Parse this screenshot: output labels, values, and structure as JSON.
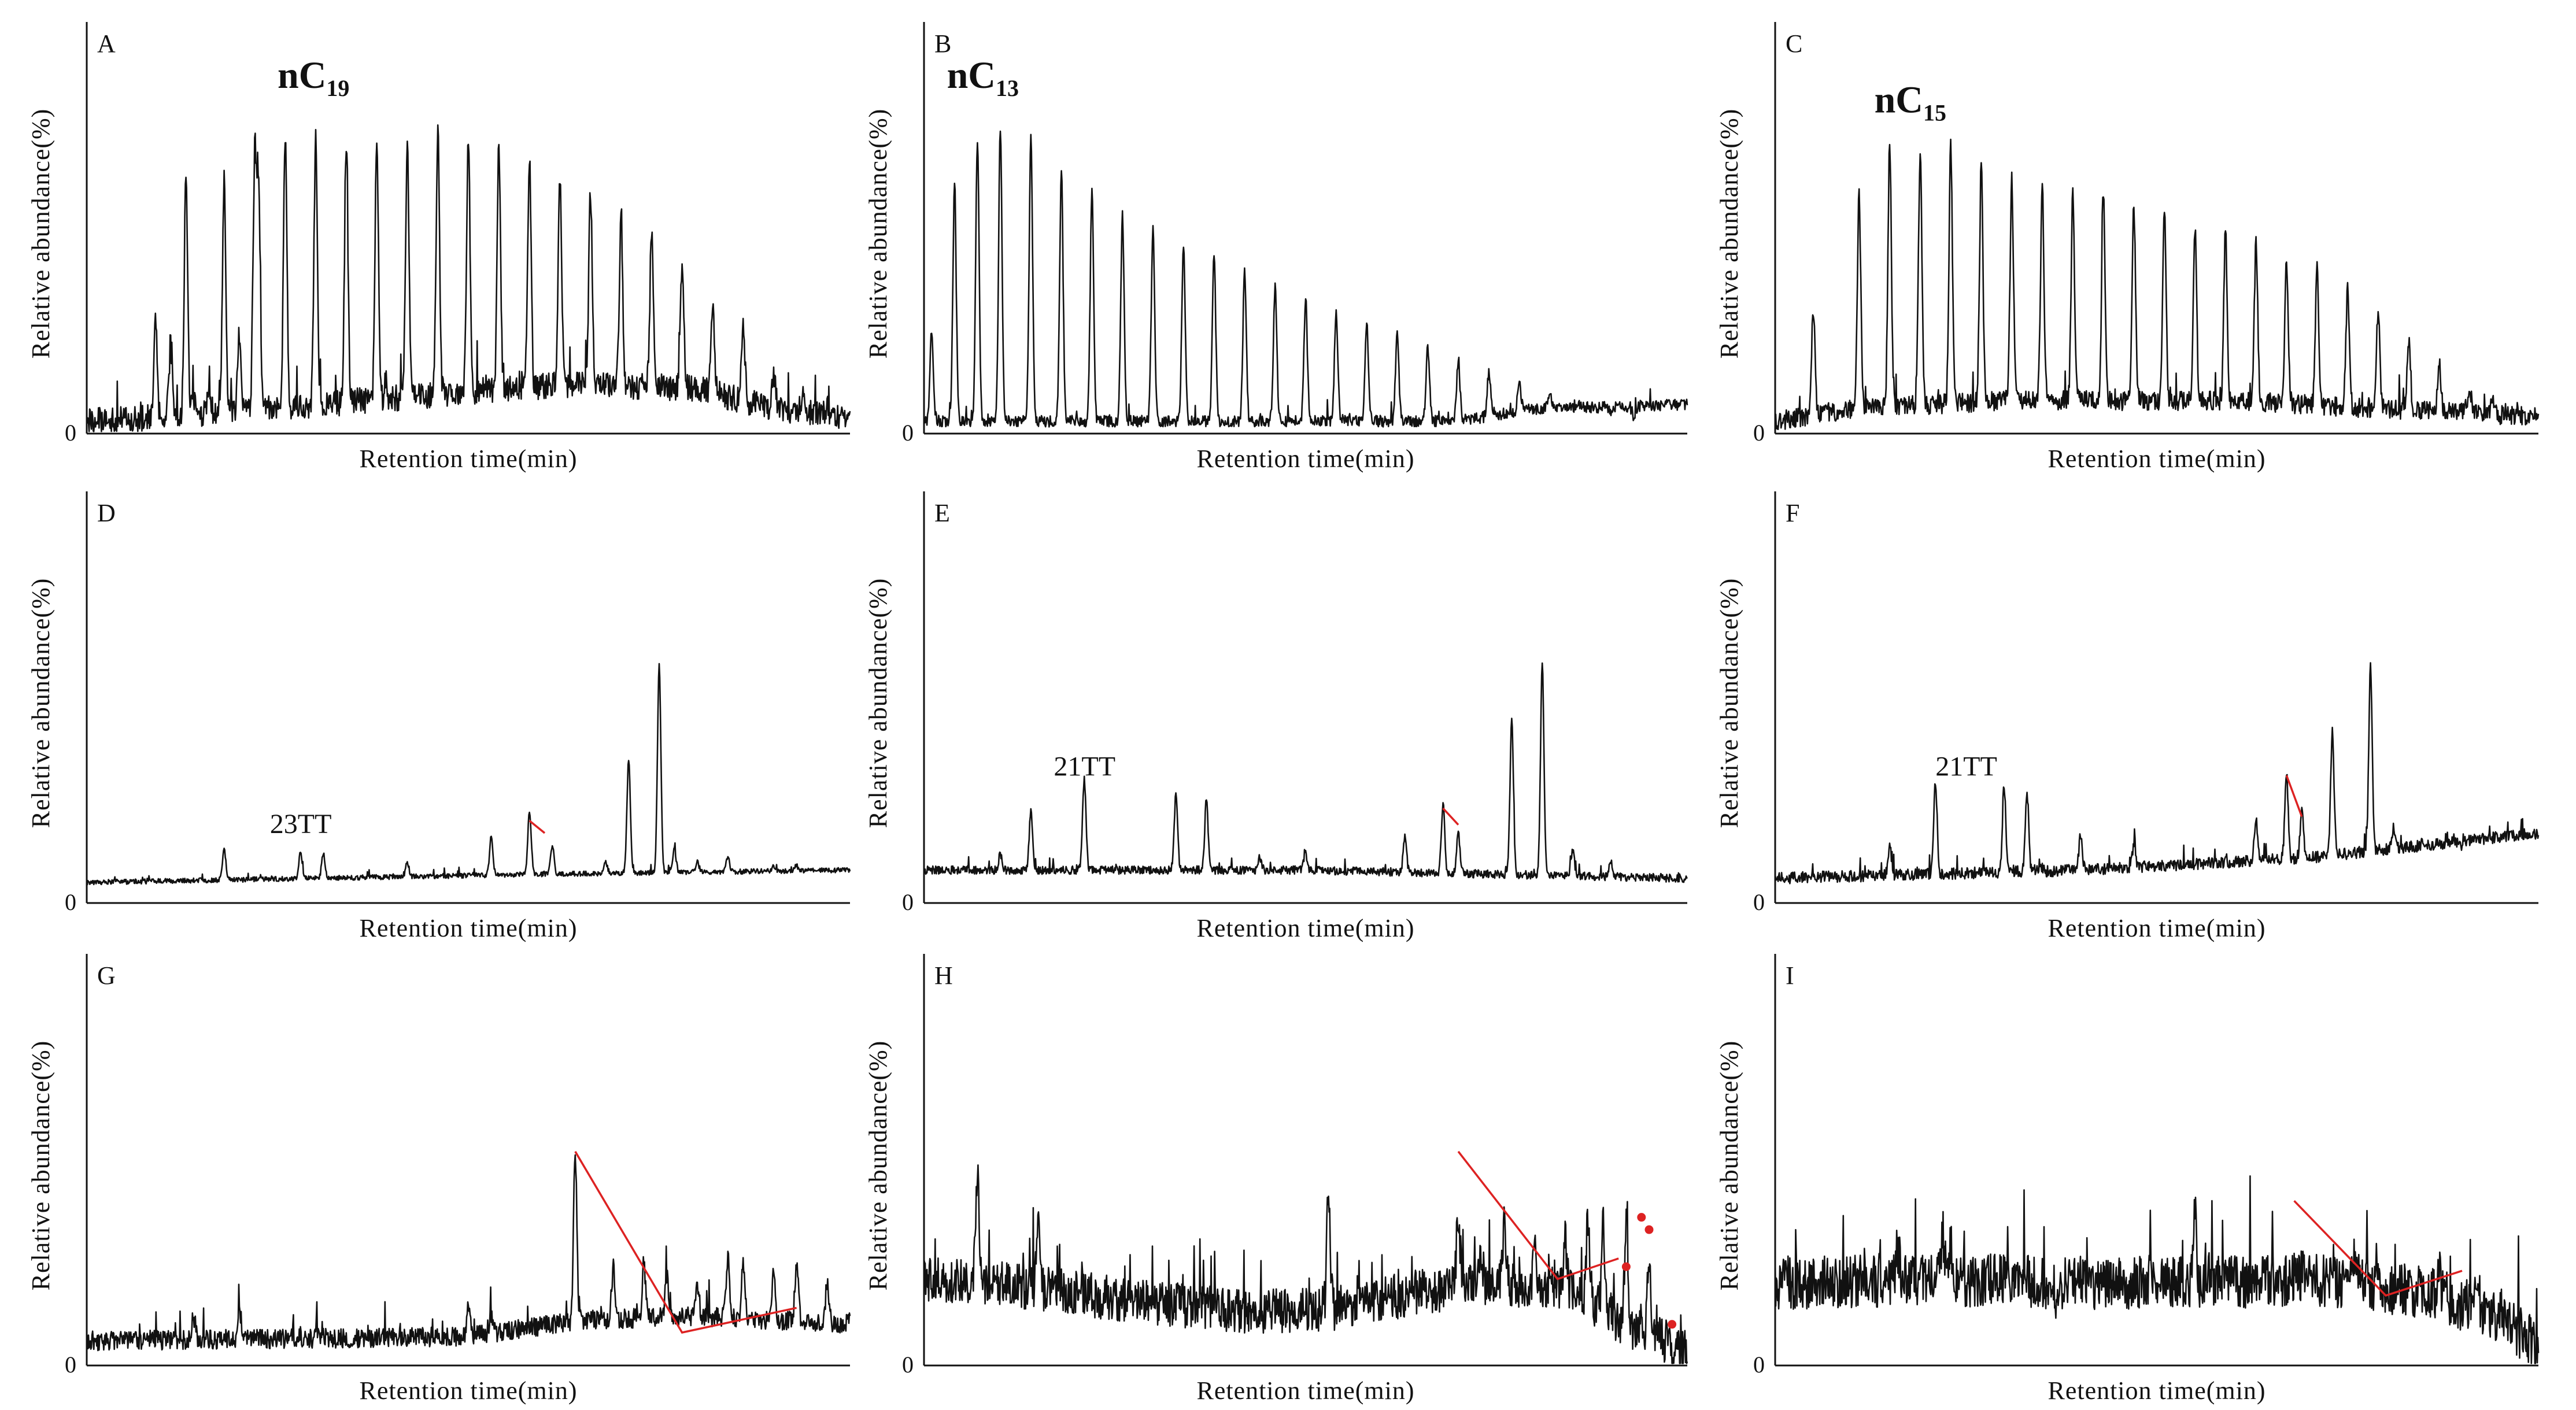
{
  "figure": {
    "y_axis_label": "Relative abundance(%)",
    "x_axis_label": "Retention time(min)",
    "origin_label": "0"
  },
  "colors": {
    "trace": "#111111",
    "annotation": "#dd2222",
    "axis": "#111111"
  },
  "chart_data": [
    {
      "panel": "A",
      "type": "line",
      "row": 0,
      "col": 0,
      "title": "",
      "xlabel": "Retention time(min)",
      "ylabel": "Relative abundance(%)",
      "xlim": [
        0,
        100
      ],
      "ylim": [
        0,
        100
      ],
      "baseline": [
        [
          0,
          3
        ],
        [
          10,
          4
        ],
        [
          30,
          7
        ],
        [
          55,
          11
        ],
        [
          65,
          12
        ],
        [
          80,
          11
        ],
        [
          90,
          6
        ],
        [
          100,
          4
        ]
      ],
      "peaks": [
        [
          9,
          27
        ],
        [
          11,
          21
        ],
        [
          13,
          63
        ],
        [
          14,
          8
        ],
        [
          16,
          12
        ],
        [
          18,
          62
        ],
        [
          20,
          24
        ],
        [
          22,
          65
        ],
        [
          22.5,
          60
        ],
        [
          26,
          72
        ],
        [
          30,
          73
        ],
        [
          34,
          71
        ],
        [
          38,
          72
        ],
        [
          42,
          71
        ],
        [
          46,
          73
        ],
        [
          50,
          72
        ],
        [
          54,
          70
        ],
        [
          58,
          67
        ],
        [
          62,
          63
        ],
        [
          66,
          59
        ],
        [
          70,
          54
        ],
        [
          74,
          48
        ],
        [
          78,
          42
        ],
        [
          82,
          31
        ],
        [
          86,
          26
        ],
        [
          90,
          15
        ],
        [
          94,
          9
        ],
        [
          97,
          7
        ]
      ],
      "noise": 3.2,
      "label": {
        "text": "nC",
        "sub": "19",
        "x": 25,
        "y": 84
      },
      "zigzag": []
    },
    {
      "panel": "B",
      "type": "line",
      "row": 0,
      "col": 1,
      "title": "",
      "xlabel": "Retention time(min)",
      "ylabel": "Relative abundance(%)",
      "xlim": [
        0,
        100
      ],
      "ylim": [
        0,
        100
      ],
      "baseline": [
        [
          0,
          3
        ],
        [
          40,
          3
        ],
        [
          70,
          3
        ],
        [
          80,
          6
        ],
        [
          100,
          7
        ]
      ],
      "peaks": [
        [
          1,
          25
        ],
        [
          4,
          60
        ],
        [
          7,
          72
        ],
        [
          10,
          74
        ],
        [
          14,
          73
        ],
        [
          18,
          64
        ],
        [
          22,
          59
        ],
        [
          26,
          53
        ],
        [
          30,
          50
        ],
        [
          34,
          46
        ],
        [
          38,
          43
        ],
        [
          42,
          39
        ],
        [
          46,
          36
        ],
        [
          50,
          33
        ],
        [
          54,
          30
        ],
        [
          58,
          27
        ],
        [
          62,
          24
        ],
        [
          66,
          21
        ],
        [
          70,
          18
        ],
        [
          74,
          15
        ],
        [
          78,
          12
        ],
        [
          82,
          9
        ],
        [
          86,
          7
        ],
        [
          90,
          5
        ],
        [
          93,
          4
        ]
      ],
      "noise": 1.4,
      "label": {
        "text": "nC",
        "sub": "13",
        "x": 3,
        "y": 84
      },
      "zigzag": []
    },
    {
      "panel": "C",
      "type": "line",
      "row": 0,
      "col": 2,
      "title": "",
      "xlabel": "Retention time(min)",
      "ylabel": "Relative abundance(%)",
      "xlim": [
        0,
        100
      ],
      "ylim": [
        0,
        100
      ],
      "baseline": [
        [
          0,
          3
        ],
        [
          10,
          6
        ],
        [
          30,
          8
        ],
        [
          60,
          8
        ],
        [
          80,
          6
        ],
        [
          100,
          4
        ]
      ],
      "peaks": [
        [
          5,
          30
        ],
        [
          11,
          58
        ],
        [
          15,
          70
        ],
        [
          19,
          69
        ],
        [
          23,
          70
        ],
        [
          27,
          65
        ],
        [
          31,
          62
        ],
        [
          35,
          60
        ],
        [
          39,
          58
        ],
        [
          43,
          58
        ],
        [
          47,
          55
        ],
        [
          51,
          53
        ],
        [
          55,
          50
        ],
        [
          59,
          49
        ],
        [
          63,
          46
        ],
        [
          67,
          42
        ],
        [
          71,
          40
        ],
        [
          75,
          35
        ],
        [
          79,
          30
        ],
        [
          83,
          23
        ],
        [
          87,
          17
        ],
        [
          91,
          11
        ],
        [
          94,
          7
        ]
      ],
      "noise": 2.4,
      "label": {
        "text": "nC",
        "sub": "15",
        "x": 13,
        "y": 78
      },
      "zigzag": []
    },
    {
      "panel": "D",
      "type": "line",
      "row": 1,
      "col": 0,
      "title": "",
      "xlabel": "Retention time(min)",
      "ylabel": "Relative abundance(%)",
      "xlim": [
        0,
        100
      ],
      "ylim": [
        0,
        100
      ],
      "baseline": [
        [
          0,
          5
        ],
        [
          30,
          6
        ],
        [
          60,
          7
        ],
        [
          100,
          8
        ]
      ],
      "peaks": [
        [
          18,
          13
        ],
        [
          28,
          12
        ],
        [
          31,
          12
        ],
        [
          42,
          10
        ],
        [
          53,
          16
        ],
        [
          58,
          22
        ],
        [
          61,
          14
        ],
        [
          68,
          10
        ],
        [
          71,
          35
        ],
        [
          75,
          58
        ],
        [
          77,
          13
        ],
        [
          80,
          10
        ],
        [
          84,
          11
        ],
        [
          90,
          9
        ],
        [
          93,
          9
        ]
      ],
      "noise": 0.6,
      "label": {
        "text": "23TT",
        "sub": "",
        "x": 24,
        "y": 17
      },
      "zigzag": [
        [
          [
            58,
            20
          ],
          [
            60,
            17
          ]
        ]
      ]
    },
    {
      "panel": "E",
      "type": "line",
      "row": 1,
      "col": 1,
      "title": "",
      "xlabel": "Retention time(min)",
      "ylabel": "Relative abundance(%)",
      "xlim": [
        0,
        100
      ],
      "ylim": [
        0,
        100
      ],
      "baseline": [
        [
          0,
          8
        ],
        [
          50,
          8
        ],
        [
          100,
          6
        ]
      ],
      "peaks": [
        [
          10,
          12
        ],
        [
          14,
          22
        ],
        [
          21,
          30
        ],
        [
          33,
          26
        ],
        [
          37,
          25
        ],
        [
          44,
          11
        ],
        [
          50,
          12
        ],
        [
          63,
          16
        ],
        [
          68,
          24
        ],
        [
          70,
          17
        ],
        [
          77,
          44
        ],
        [
          81,
          58
        ],
        [
          85,
          13
        ],
        [
          90,
          10
        ]
      ],
      "noise": 1.0,
      "label": {
        "text": "21TT",
        "sub": "",
        "x": 17,
        "y": 31
      },
      "zigzag": [
        [
          [
            68,
            23
          ],
          [
            70,
            19
          ]
        ]
      ]
    },
    {
      "panel": "F",
      "type": "line",
      "row": 1,
      "col": 2,
      "title": "",
      "xlabel": "Retention time(min)",
      "ylabel": "Relative abundance(%)",
      "xlim": [
        0,
        100
      ],
      "ylim": [
        0,
        100
      ],
      "baseline": [
        [
          0,
          6
        ],
        [
          40,
          8
        ],
        [
          70,
          11
        ],
        [
          85,
          14
        ],
        [
          100,
          17
        ]
      ],
      "peaks": [
        [
          15,
          14
        ],
        [
          21,
          30
        ],
        [
          30,
          28
        ],
        [
          33,
          27
        ],
        [
          40,
          16
        ],
        [
          47,
          14
        ],
        [
          63,
          20
        ],
        [
          67,
          31
        ],
        [
          69,
          22
        ],
        [
          73,
          42
        ],
        [
          78,
          57
        ],
        [
          81,
          18
        ],
        [
          85,
          15
        ],
        [
          90,
          14
        ]
      ],
      "noise": 1.4,
      "label": {
        "text": "21TT",
        "sub": "",
        "x": 21,
        "y": 31
      },
      "zigzag": [
        [
          [
            67,
            31
          ],
          [
            69,
            21
          ]
        ]
      ]
    },
    {
      "panel": "G",
      "type": "line",
      "row": 2,
      "col": 0,
      "title": "",
      "xlabel": "Retention time(min)",
      "ylabel": "Relative abundance(%)",
      "xlim": [
        0,
        100
      ],
      "ylim": [
        0,
        100
      ],
      "baseline": [
        [
          0,
          6
        ],
        [
          50,
          7
        ],
        [
          65,
          11
        ],
        [
          80,
          12
        ],
        [
          100,
          10
        ]
      ],
      "peaks": [
        [
          14,
          12
        ],
        [
          20,
          14
        ],
        [
          50,
          14
        ],
        [
          53,
          12
        ],
        [
          64,
          52
        ],
        [
          69,
          24
        ],
        [
          73,
          25
        ],
        [
          76,
          22
        ],
        [
          80,
          20
        ],
        [
          84,
          26
        ],
        [
          86,
          25
        ],
        [
          90,
          24
        ],
        [
          93,
          25
        ],
        [
          97,
          20
        ]
      ],
      "noise": 2.4,
      "label": null,
      "zigzag": [
        [
          [
            64,
            52
          ],
          [
            78,
            8
          ],
          [
            93,
            14
          ]
        ]
      ]
    },
    {
      "panel": "H",
      "type": "line",
      "row": 2,
      "col": 1,
      "title": "",
      "xlabel": "Retention time(min)",
      "ylabel": "Relative abundance(%)",
      "xlim": [
        0,
        100
      ],
      "ylim": [
        0,
        100
      ],
      "baseline": [
        [
          0,
          21
        ],
        [
          10,
          20
        ],
        [
          30,
          15
        ],
        [
          45,
          13
        ],
        [
          55,
          14
        ],
        [
          65,
          18
        ],
        [
          75,
          20
        ],
        [
          85,
          18
        ],
        [
          92,
          10
        ],
        [
          100,
          4
        ]
      ],
      "peaks": [
        [
          7,
          45
        ],
        [
          15,
          38
        ],
        [
          53,
          42
        ],
        [
          57,
          20
        ],
        [
          61,
          20
        ],
        [
          70,
          38
        ],
        [
          73,
          28
        ],
        [
          76,
          34
        ],
        [
          80,
          28
        ],
        [
          84,
          30
        ],
        [
          87,
          36
        ],
        [
          89,
          33
        ],
        [
          92,
          34
        ],
        [
          95,
          24
        ],
        [
          98,
          5
        ]
      ],
      "noise": 5.5,
      "label": null,
      "zigzag": [
        [
          [
            70,
            52
          ],
          [
            83,
            21
          ],
          [
            91,
            26
          ]
        ]
      ],
      "dots": [
        [
          94,
          36
        ],
        [
          95,
          33
        ],
        [
          92,
          24
        ],
        [
          98,
          10
        ]
      ]
    },
    {
      "panel": "I",
      "type": "line",
      "row": 2,
      "col": 2,
      "title": "",
      "xlabel": "Retention time(min)",
      "ylabel": "Relative abundance(%)",
      "xlim": [
        0,
        100
      ],
      "ylim": [
        0,
        100
      ],
      "baseline": [
        [
          0,
          20
        ],
        [
          20,
          21
        ],
        [
          40,
          20
        ],
        [
          55,
          20
        ],
        [
          70,
          21
        ],
        [
          85,
          18
        ],
        [
          95,
          12
        ],
        [
          100,
          4
        ]
      ],
      "peaks": [
        [
          16,
          28
        ],
        [
          22,
          32
        ],
        [
          37,
          14
        ],
        [
          50,
          18
        ],
        [
          55,
          38
        ],
        [
          57,
          24
        ],
        [
          66,
          20
        ],
        [
          69,
          22
        ],
        [
          73,
          28
        ],
        [
          76,
          28
        ],
        [
          79,
          20
        ],
        [
          83,
          18
        ],
        [
          87,
          24
        ],
        [
          92,
          22
        ],
        [
          95,
          15
        ]
      ],
      "noise": 6.5,
      "label": null,
      "zigzag": [
        [
          [
            68,
            40
          ],
          [
            80,
            17
          ],
          [
            90,
            23
          ]
        ]
      ]
    }
  ]
}
